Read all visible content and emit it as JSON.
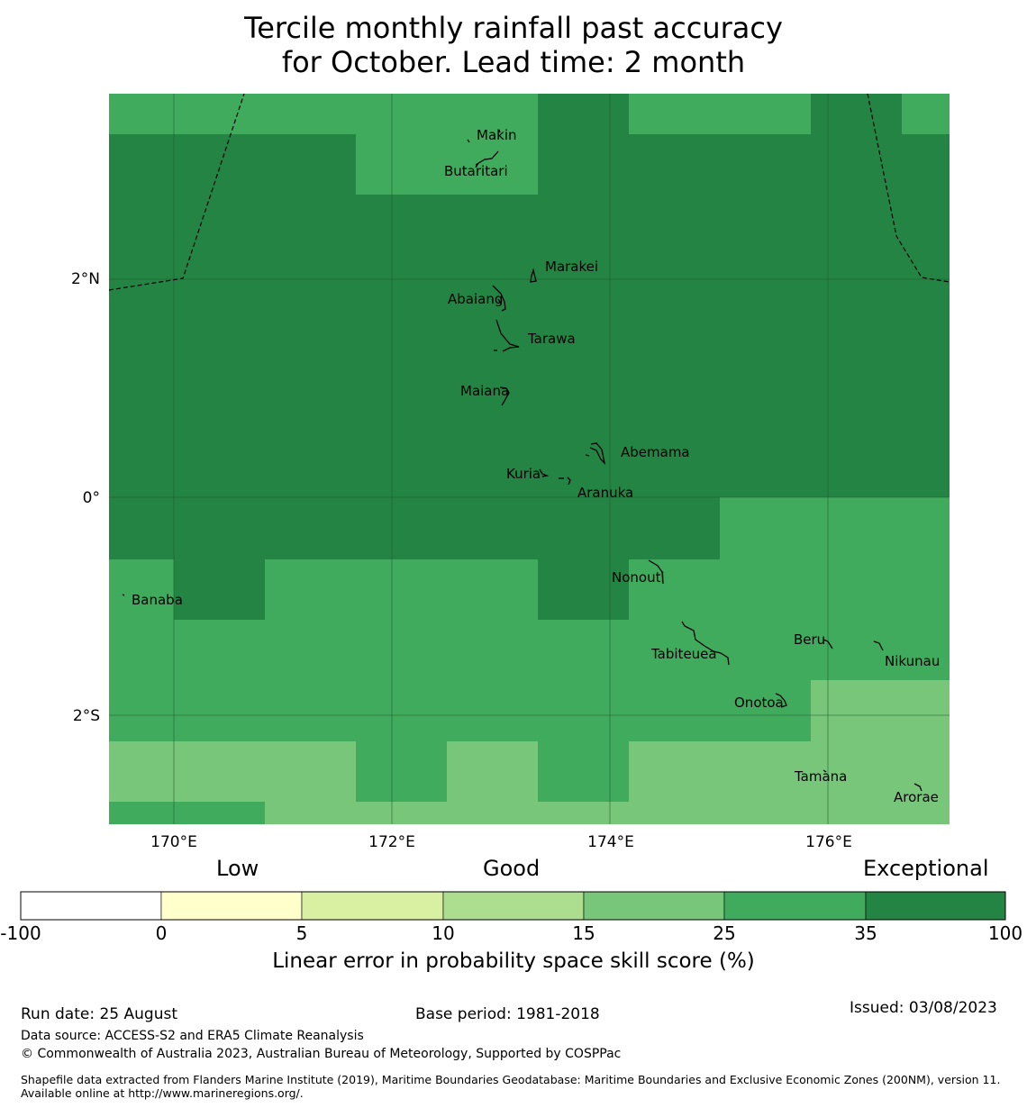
{
  "title": {
    "line1": "Tercile monthly rainfall past accuracy",
    "line2": "for October. Lead time: 2 month"
  },
  "map": {
    "lat_labels": [
      "2°N",
      "0°",
      "2°S"
    ],
    "lon_labels": [
      "170°E",
      "172°E",
      "174°E",
      "176°E"
    ],
    "islands": [
      {
        "name": "Makin",
        "lon": 172.98,
        "lat": 3.28
      },
      {
        "name": "Butaritari",
        "lon": 172.75,
        "lat": 3.08
      },
      {
        "name": "Marakei",
        "lon": 173.28,
        "lat": 2.0
      },
      {
        "name": "Abaiang",
        "lon": 172.95,
        "lat": 1.83
      },
      {
        "name": "Tarawa",
        "lon": 173.1,
        "lat": 1.45
      },
      {
        "name": "Maiana",
        "lon": 173.0,
        "lat": 0.92
      },
      {
        "name": "Abemama",
        "lon": 173.85,
        "lat": 0.38
      },
      {
        "name": "Kuria",
        "lon": 173.42,
        "lat": 0.23
      },
      {
        "name": "Aranuka",
        "lon": 173.62,
        "lat": 0.17
      },
      {
        "name": "Nonouti",
        "lon": 174.42,
        "lat": -0.67
      },
      {
        "name": "Banaba",
        "lon": 169.53,
        "lat": -0.86
      },
      {
        "name": "Tabiteuea",
        "lon": 174.85,
        "lat": -1.35
      },
      {
        "name": "Beru",
        "lon": 176.0,
        "lat": -1.33
      },
      {
        "name": "Nikunau",
        "lon": 176.47,
        "lat": -1.38
      },
      {
        "name": "Onotoa",
        "lon": 175.57,
        "lat": -1.83
      },
      {
        "name": "Tamana",
        "lon": 175.98,
        "lat": -2.5
      },
      {
        "name": "Arorae",
        "lon": 176.82,
        "lat": -2.64
      }
    ]
  },
  "colorbar": {
    "categories": [
      "Low",
      "Good",
      "Exceptional"
    ],
    "ticks": [
      "-100",
      "0",
      "5",
      "10",
      "15",
      "25",
      "35",
      "100"
    ],
    "colors": [
      "#ffffff",
      "#ffffcc",
      "#d9f0a3",
      "#addd8e",
      "#78c679",
      "#41ab5d",
      "#238443"
    ],
    "label": "Linear error in probability space skill score (%)"
  },
  "footer": {
    "run_date": "Run date: 25 August",
    "base_period": "Base period: 1981-2018",
    "issued": "Issued: 03/08/2023",
    "data_source": "Data source: ACCESS-S2 and ERA5 Climate Reanalysis",
    "copyright": "© Commonwealth of Australia 2023, Australian Bureau of Meteorology, Supported by COSPPac",
    "shapefile": "Shapefile data extracted from Flanders Marine Institute (2019), Maritime Boundaries Geodatabase: Maritime Boundaries and Exclusive Economic Zones (200NM), version 11. Available online at http://www.marineregions.org/."
  }
}
